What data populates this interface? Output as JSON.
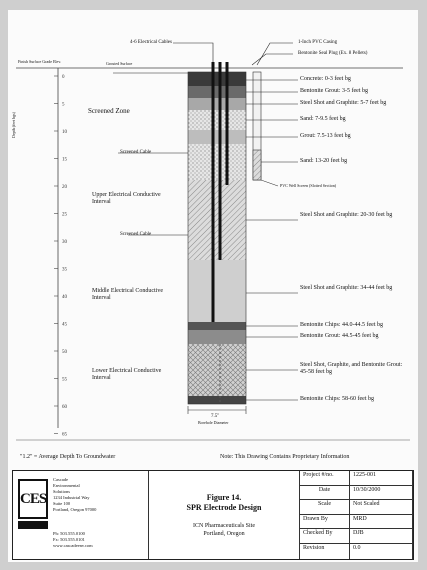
{
  "top_labels": {
    "electrodes": "4-6 Electrical Cables",
    "casing": "1-Inch PVC Casing",
    "bentonite_seal": "Bentonite Seal Plug (Ex. 8 Pellets)",
    "surface_elevation": "Finish Surface Grade Elev.",
    "surface_line": "Grouted Surface"
  },
  "axis": {
    "label": "Depth (feet bgs)",
    "ticks": [
      "0",
      "5",
      "10",
      "15",
      "20",
      "25",
      "30",
      "35",
      "40",
      "45",
      "50",
      "55",
      "60",
      "65"
    ]
  },
  "zones": [
    {
      "name": "Screened Zone"
    },
    {
      "name": "Screened Cable"
    },
    {
      "name": "Upper Electrical Conductive Interval"
    },
    {
      "name": "Screened Cable"
    },
    {
      "name": "Middle Electrical Conductive Interval"
    },
    {
      "name": "Lower Electrical Conductive Interval"
    }
  ],
  "materials": [
    {
      "label": "Concrete: 0-3 feet bg"
    },
    {
      "label": "Bentonite Grout: 3-5 feet bg"
    },
    {
      "label": "Steel Shot and Graphite: 5-7 feet bg"
    },
    {
      "label": "Sand: 7-9.5 feet bg"
    },
    {
      "label": "Grout: 7.5-13 feet bg"
    },
    {
      "label": "Sand: 13-20 feet bg"
    },
    {
      "label": "Steel Shot and Graphite: 20-30 feet bg"
    },
    {
      "label": "Steel Shot and Graphite: 34-44 feet bg"
    },
    {
      "label": "Bentonite Chips: 44.0-44.5 feet bg"
    },
    {
      "label": "Bentonite Grout: 44.5-45 feet bg"
    },
    {
      "label": "Steel Shot, Graphite, and Bentonite Grout: 45-58 feet bg"
    },
    {
      "label": "Bentonite Chips: 58-60 feet bg"
    }
  ],
  "small_note": "PVC Well Screen (Slotted Section)",
  "bottom_dim": "7.5\"",
  "bottom_dim_label": "Borehole Diameter",
  "legend": "\"1.2\" = Average Depth To Groundwater",
  "notice": "Note: This Drawing Contains Proprietary Information",
  "company": {
    "logo": "CES",
    "lines": [
      "Cascade",
      "Environmental",
      "Solutions",
      "1234 Industrial Way",
      "Suite 100",
      "Portland, Oregon 97000"
    ],
    "phone": [
      "Ph: 503.555.0100",
      "Fx: 503.555.0101",
      "www.cascadeenv.com"
    ]
  },
  "figure": {
    "title": "Figure 14.",
    "subtitle": "SPR Electrode Design",
    "site": "ICN Pharmaceuticals Site",
    "location": "Portland, Oregon"
  },
  "title_block": [
    {
      "label": "Project #/no.",
      "value": "1225-001"
    },
    {
      "label": "Date",
      "value": "10/30/2000"
    },
    {
      "label": "Scale",
      "value": "Not Scaled"
    },
    {
      "label": "Drawn By",
      "value": "MRD"
    },
    {
      "label": "Checked By",
      "value": "DJB"
    },
    {
      "label": "Revision",
      "value": "0.0"
    }
  ]
}
